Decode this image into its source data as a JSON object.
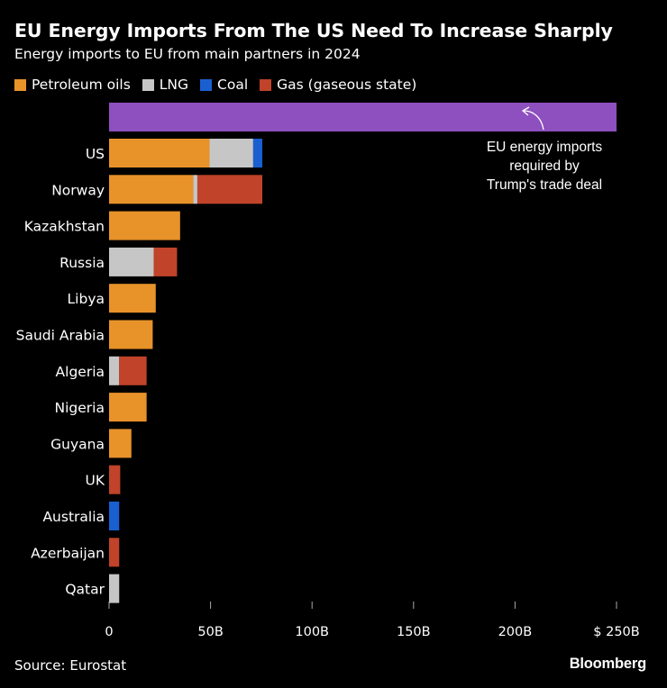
{
  "title": "EU Energy Imports From The US Need To Increase Sharply",
  "subtitle": "Energy imports to EU from main partners in 2024",
  "legend": [
    {
      "name": "Petroleum oils",
      "color": "#E8922A"
    },
    {
      "name": "LNG",
      "color": "#C6C6C6"
    },
    {
      "name": "Coal",
      "color": "#1A5FD0"
    },
    {
      "name": "Gas (gaseous state)",
      "color": "#C0432A"
    }
  ],
  "source": "Source: Eurostat",
  "brand": "Bloomberg",
  "chart_data": {
    "type": "bar",
    "orientation": "horizontal",
    "stacked": true,
    "title": "EU Energy Imports From The US Need To Increase Sharply",
    "subtitle": "Energy imports to EU from main partners in 2024",
    "xlim": [
      0,
      250
    ],
    "xticks": [
      "0",
      "50B",
      "100B",
      "150B",
      "200B",
      "$ 250B"
    ],
    "xtick_values": [
      0,
      50,
      100,
      150,
      200,
      250
    ],
    "legend_position": "top",
    "target": {
      "value": 250,
      "color": "#8E4FBF",
      "annotation": [
        "EU energy imports",
        "required by",
        "Trump's trade deal"
      ]
    },
    "categories": [
      "US",
      "Norway",
      "Kazakhstan",
      "Russia",
      "Libya",
      "Saudi Arabia",
      "Algeria",
      "Nigeria",
      "Guyana",
      "UK",
      "Australia",
      "Azerbaijan",
      "Qatar"
    ],
    "series": [
      {
        "name": "Petroleum oils",
        "color": "#E8922A",
        "values": [
          49.5,
          41.5,
          35,
          0,
          23,
          21.5,
          0,
          18.5,
          11,
          0,
          0,
          0,
          0
        ]
      },
      {
        "name": "LNG",
        "color": "#C6C6C6",
        "values": [
          21.5,
          2,
          0,
          22,
          0,
          0,
          5,
          0,
          0,
          0,
          0,
          0,
          5
        ]
      },
      {
        "name": "Coal",
        "color": "#1A5FD0",
        "values": [
          4.5,
          0,
          0,
          0,
          0,
          0,
          0,
          0,
          0,
          0,
          5,
          0,
          0
        ]
      },
      {
        "name": "Gas (gaseous state)",
        "color": "#C0432A",
        "values": [
          0,
          32,
          0,
          11.5,
          0,
          0,
          13.5,
          0,
          0,
          5.5,
          0,
          5,
          0
        ]
      }
    ]
  }
}
